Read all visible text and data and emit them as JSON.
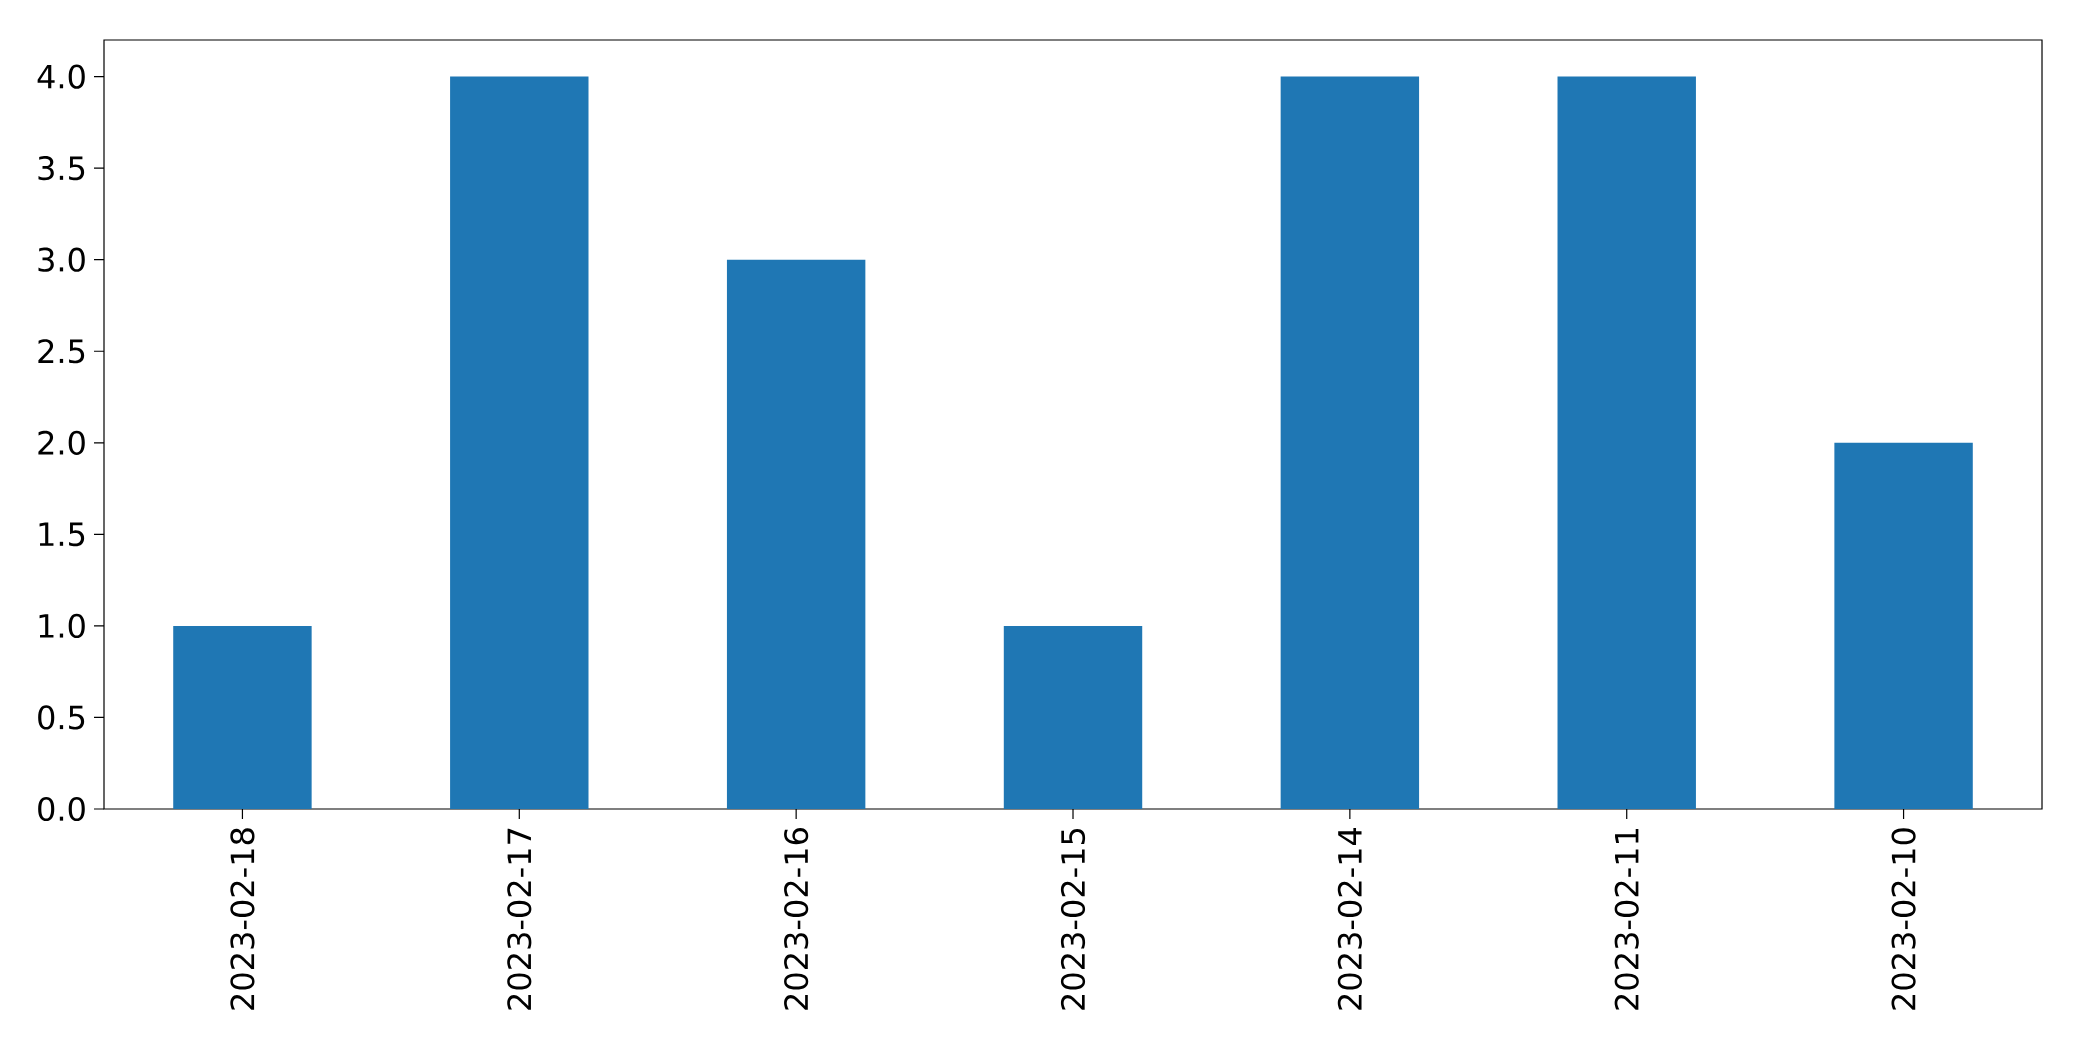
{
  "chart_data": {
    "type": "bar",
    "categories": [
      "2023-02-18",
      "2023-02-17",
      "2023-02-16",
      "2023-02-15",
      "2023-02-14",
      "2023-02-11",
      "2023-02-10"
    ],
    "values": [
      1,
      4,
      3,
      1,
      4,
      4,
      2
    ],
    "color": "#1f77b4",
    "ylim": [
      0,
      4.2
    ],
    "yticks": [
      {
        "value": 0,
        "label": "0.0"
      },
      0.5,
      {
        "value": 1,
        "label": "1.0"
      },
      1.5,
      {
        "value": 2,
        "label": "2.0"
      },
      2.5,
      {
        "value": 3,
        "label": "3.0"
      },
      3.5,
      {
        "value": 4,
        "label": "4.0"
      }
    ]
  }
}
